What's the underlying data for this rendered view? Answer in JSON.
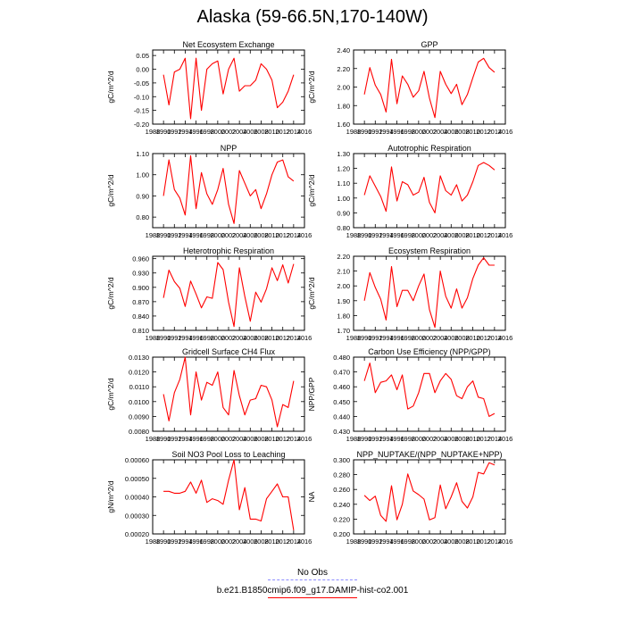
{
  "figure": {
    "title": "Alaska (59-66.5N,170-140W)",
    "legend": [
      {
        "label": "No Obs",
        "color": "#8c8cff",
        "dashed": true
      },
      {
        "label": "b.e21.B1850cmip6.f09_g17.DAMIP-hist-co2.001",
        "color": "#ff0000",
        "dashed": false
      }
    ]
  },
  "chart_data": [
    {
      "type": "line",
      "title": "Net Ecosystem Exchange",
      "ylabel": "gC/m^2/d",
      "xlabel": "",
      "xlim": [
        1988,
        2016
      ],
      "ylim": [
        -0.2,
        0.07
      ],
      "xticks": [
        "1988",
        "1990",
        "1992",
        "1994",
        "1996",
        "1998",
        "2000",
        "2002",
        "2004",
        "2006",
        "2008",
        "2010",
        "2012",
        "2014",
        "2016"
      ],
      "yticks": [
        "-0.20",
        "-0.15",
        "-0.10",
        "-0.05",
        "0.00",
        "0.05"
      ],
      "ytick_values": [
        -0.2,
        -0.15,
        -0.1,
        -0.05,
        0.0,
        0.05
      ],
      "series": [
        {
          "color": "#ff0000",
          "x": [
            1990,
            1991,
            1992,
            1993,
            1994,
            1995,
            1996,
            1997,
            1998,
            1999,
            2000,
            2001,
            2002,
            2003,
            2004,
            2005,
            2006,
            2007,
            2008,
            2009,
            2010,
            2011,
            2012,
            2013,
            2014
          ],
          "y": [
            -0.02,
            -0.13,
            -0.01,
            0.0,
            0.04,
            -0.18,
            0.04,
            -0.15,
            0.0,
            0.02,
            0.03,
            -0.09,
            0.0,
            0.04,
            -0.08,
            -0.06,
            -0.06,
            -0.04,
            0.02,
            0.0,
            -0.04,
            -0.14,
            -0.12,
            -0.08,
            -0.02
          ]
        }
      ]
    },
    {
      "type": "line",
      "title": "GPP",
      "ylabel": "gC/m^2/d",
      "xlabel": "",
      "xlim": [
        1988,
        2016
      ],
      "ylim": [
        1.6,
        2.4
      ],
      "xticks": [
        "1988",
        "1990",
        "1992",
        "1994",
        "1996",
        "1998",
        "2000",
        "2002",
        "2004",
        "2006",
        "2008",
        "2010",
        "2012",
        "2014",
        "2016"
      ],
      "yticks": [
        "1.60",
        "1.80",
        "2.00",
        "2.20",
        "2.40"
      ],
      "ytick_values": [
        1.6,
        1.8,
        2.0,
        2.2,
        2.4
      ],
      "series": [
        {
          "color": "#ff0000",
          "x": [
            1990,
            1991,
            1992,
            1993,
            1994,
            1995,
            1996,
            1997,
            1998,
            1999,
            2000,
            2001,
            2002,
            2003,
            2004,
            2005,
            2006,
            2007,
            2008,
            2009,
            2010,
            2011,
            2012,
            2013,
            2014
          ],
          "y": [
            1.92,
            2.21,
            2.02,
            1.92,
            1.73,
            2.3,
            1.82,
            2.12,
            2.03,
            1.89,
            1.96,
            2.17,
            1.88,
            1.67,
            2.17,
            2.03,
            1.93,
            2.03,
            1.81,
            1.92,
            2.1,
            2.27,
            2.31,
            2.21,
            2.16
          ]
        }
      ]
    },
    {
      "type": "line",
      "title": "NPP",
      "ylabel": "gC/m^2/d",
      "xlabel": "",
      "xlim": [
        1988,
        2016
      ],
      "ylim": [
        0.75,
        1.1
      ],
      "xticks": [
        "1988",
        "1990",
        "1992",
        "1994",
        "1996",
        "1998",
        "2000",
        "2002",
        "2004",
        "2006",
        "2008",
        "2010",
        "2012",
        "2014",
        "2016"
      ],
      "yticks": [
        "0.80",
        "0.90",
        "1.00",
        "1.10"
      ],
      "ytick_values": [
        0.8,
        0.9,
        1.0,
        1.1
      ],
      "series": [
        {
          "color": "#ff0000",
          "x": [
            1990,
            1991,
            1992,
            1993,
            1994,
            1995,
            1996,
            1997,
            1998,
            1999,
            2000,
            2001,
            2002,
            2003,
            2004,
            2005,
            2006,
            2007,
            2008,
            2009,
            2010,
            2011,
            2012,
            2013,
            2014
          ],
          "y": [
            0.9,
            1.07,
            0.93,
            0.89,
            0.81,
            1.09,
            0.84,
            1.01,
            0.91,
            0.86,
            0.93,
            1.03,
            0.86,
            0.77,
            1.02,
            0.96,
            0.9,
            0.93,
            0.84,
            0.91,
            1.0,
            1.06,
            1.07,
            0.99,
            0.97
          ]
        }
      ]
    },
    {
      "type": "line",
      "title": "Autotrophic Respiration",
      "ylabel": "gC/m^2/d",
      "xlabel": "",
      "xlim": [
        1988,
        2016
      ],
      "ylim": [
        0.8,
        1.3
      ],
      "xticks": [
        "1988",
        "1990",
        "1992",
        "1994",
        "1996",
        "1998",
        "2000",
        "2002",
        "2004",
        "2006",
        "2008",
        "2010",
        "2012",
        "2014",
        "2016"
      ],
      "yticks": [
        "0.80",
        "0.90",
        "1.00",
        "1.10",
        "1.20",
        "1.30"
      ],
      "ytick_values": [
        0.8,
        0.9,
        1.0,
        1.1,
        1.2,
        1.3
      ],
      "series": [
        {
          "color": "#ff0000",
          "x": [
            1990,
            1991,
            1992,
            1993,
            1994,
            1995,
            1996,
            1997,
            1998,
            1999,
            2000,
            2001,
            2002,
            2003,
            2004,
            2005,
            2006,
            2007,
            2008,
            2009,
            2010,
            2011,
            2012,
            2013,
            2014
          ],
          "y": [
            1.02,
            1.15,
            1.08,
            1.01,
            0.91,
            1.21,
            0.98,
            1.11,
            1.09,
            1.02,
            1.04,
            1.14,
            0.97,
            0.9,
            1.15,
            1.05,
            1.02,
            1.09,
            0.98,
            1.02,
            1.11,
            1.22,
            1.24,
            1.22,
            1.19
          ]
        }
      ]
    },
    {
      "type": "line",
      "title": "Heterotrophic Respiration",
      "ylabel": "gC/m^2/d",
      "xlabel": "",
      "xlim": [
        1988,
        2016
      ],
      "ylim": [
        0.81,
        0.965
      ],
      "xticks": [
        "1988",
        "1990",
        "1992",
        "1994",
        "1996",
        "1998",
        "2000",
        "2002",
        "2004",
        "2006",
        "2008",
        "2010",
        "2012",
        "2014",
        "2016"
      ],
      "yticks": [
        "0.810",
        "0.840",
        "0.870",
        "0.900",
        "0.930",
        "0.960"
      ],
      "ytick_values": [
        0.81,
        0.84,
        0.87,
        0.9,
        0.93,
        0.96
      ],
      "series": [
        {
          "color": "#ff0000",
          "x": [
            1990,
            1991,
            1992,
            1993,
            1994,
            1995,
            1996,
            1997,
            1998,
            1999,
            2000,
            2001,
            2002,
            2003,
            2004,
            2005,
            2006,
            2007,
            2008,
            2009,
            2010,
            2011,
            2012,
            2013,
            2014
          ],
          "y": [
            0.878,
            0.936,
            0.912,
            0.898,
            0.86,
            0.913,
            0.886,
            0.857,
            0.88,
            0.877,
            0.952,
            0.937,
            0.869,
            0.818,
            0.941,
            0.881,
            0.829,
            0.89,
            0.869,
            0.897,
            0.941,
            0.914,
            0.947,
            0.909,
            0.949
          ]
        }
      ]
    },
    {
      "type": "line",
      "title": "Ecosystem Respiration",
      "ylabel": "gC/m^2/d",
      "xlabel": "",
      "xlim": [
        1988,
        2016
      ],
      "ylim": [
        1.7,
        2.2
      ],
      "xticks": [
        "1988",
        "1990",
        "1992",
        "1994",
        "1996",
        "1998",
        "2000",
        "2002",
        "2004",
        "2006",
        "2008",
        "2010",
        "2012",
        "2014",
        "2016"
      ],
      "yticks": [
        "1.70",
        "1.80",
        "1.90",
        "2.00",
        "2.10",
        "2.20"
      ],
      "ytick_values": [
        1.7,
        1.8,
        1.9,
        2.0,
        2.1,
        2.2
      ],
      "series": [
        {
          "color": "#ff0000",
          "x": [
            1990,
            1991,
            1992,
            1993,
            1994,
            1995,
            1996,
            1997,
            1998,
            1999,
            2000,
            2001,
            2002,
            2003,
            2004,
            2005,
            2006,
            2007,
            2008,
            2009,
            2010,
            2011,
            2012,
            2013,
            2014
          ],
          "y": [
            1.9,
            2.09,
            1.99,
            1.91,
            1.77,
            2.13,
            1.86,
            1.97,
            1.97,
            1.9,
            2.0,
            2.08,
            1.84,
            1.72,
            2.1,
            1.93,
            1.85,
            1.98,
            1.85,
            1.92,
            2.05,
            2.14,
            2.19,
            2.14,
            2.14
          ]
        }
      ]
    },
    {
      "type": "line",
      "title": "Gridcell Surface CH4 Flux",
      "ylabel": "gC/m^2/d",
      "xlabel": "",
      "xlim": [
        1988,
        2016
      ],
      "ylim": [
        0.008,
        0.013
      ],
      "xticks": [
        "1988",
        "1990",
        "1992",
        "1994",
        "1996",
        "1998",
        "2000",
        "2002",
        "2004",
        "2006",
        "2008",
        "2010",
        "2012",
        "2014",
        "2016"
      ],
      "yticks": [
        "0.0080",
        "0.0090",
        "0.0100",
        "0.0110",
        "0.0120",
        "0.0130"
      ],
      "ytick_values": [
        0.008,
        0.009,
        0.01,
        0.011,
        0.012,
        0.013
      ],
      "series": [
        {
          "color": "#ff0000",
          "x": [
            1990,
            1991,
            1992,
            1993,
            1994,
            1995,
            1996,
            1997,
            1998,
            1999,
            2000,
            2001,
            2002,
            2003,
            2004,
            2005,
            2006,
            2007,
            2008,
            2009,
            2010,
            2011,
            2012,
            2013,
            2014
          ],
          "y": [
            0.0105,
            0.0087,
            0.0106,
            0.0115,
            0.013,
            0.0091,
            0.012,
            0.0101,
            0.0113,
            0.0111,
            0.012,
            0.0096,
            0.0091,
            0.0121,
            0.0104,
            0.0091,
            0.0101,
            0.0102,
            0.0111,
            0.011,
            0.0101,
            0.0083,
            0.0098,
            0.0096,
            0.0114
          ]
        }
      ]
    },
    {
      "type": "line",
      "title": "Carbon Use Efficiency (NPP/GPP)",
      "ylabel": "NPP/GPP",
      "xlabel": "",
      "xlim": [
        1988,
        2016
      ],
      "ylim": [
        0.43,
        0.48
      ],
      "xticks": [
        "1988",
        "1990",
        "1992",
        "1994",
        "1996",
        "1998",
        "2000",
        "2002",
        "2004",
        "2006",
        "2008",
        "2010",
        "2012",
        "2014",
        "2016"
      ],
      "yticks": [
        "0.430",
        "0.440",
        "0.450",
        "0.460",
        "0.470",
        "0.480"
      ],
      "ytick_values": [
        0.43,
        0.44,
        0.45,
        0.46,
        0.47,
        0.48
      ],
      "series": [
        {
          "color": "#ff0000",
          "x": [
            1990,
            1991,
            1992,
            1993,
            1994,
            1995,
            1996,
            1997,
            1998,
            1999,
            2000,
            2001,
            2002,
            2003,
            2004,
            2005,
            2006,
            2007,
            2008,
            2009,
            2010,
            2011,
            2012,
            2013,
            2014
          ],
          "y": [
            0.464,
            0.476,
            0.456,
            0.463,
            0.464,
            0.468,
            0.458,
            0.468,
            0.445,
            0.447,
            0.456,
            0.469,
            0.469,
            0.456,
            0.464,
            0.469,
            0.465,
            0.454,
            0.452,
            0.46,
            0.464,
            0.453,
            0.452,
            0.44,
            0.442
          ]
        }
      ]
    },
    {
      "type": "line",
      "title": "Soil NO3 Pool Loss to Leaching",
      "ylabel": "gN/m^2/d",
      "xlabel": "",
      "xlim": [
        1988,
        2016
      ],
      "ylim": [
        0.0002,
        0.0006
      ],
      "xticks": [
        "1988",
        "1990",
        "1992",
        "1994",
        "1996",
        "1998",
        "2000",
        "2002",
        "2004",
        "2006",
        "2008",
        "2010",
        "2012",
        "2014",
        "2016"
      ],
      "yticks": [
        "0.00020",
        "0.00030",
        "0.00040",
        "0.00050",
        "0.00060"
      ],
      "ytick_values": [
        0.0002,
        0.0003,
        0.0004,
        0.0005,
        0.0006
      ],
      "series": [
        {
          "color": "#ff0000",
          "x": [
            1990,
            1991,
            1992,
            1993,
            1994,
            1995,
            1996,
            1997,
            1998,
            1999,
            2000,
            2001,
            2002,
            2003,
            2004,
            2005,
            2006,
            2007,
            2008,
            2009,
            2010,
            2011,
            2012,
            2013,
            2014
          ],
          "y": [
            0.00043,
            0.00043,
            0.00042,
            0.00042,
            0.00043,
            0.00048,
            0.00042,
            0.00049,
            0.00037,
            0.00039,
            0.00038,
            0.00036,
            0.00049,
            0.0006,
            0.00033,
            0.00045,
            0.00028,
            0.00028,
            0.00027,
            0.00039,
            0.00043,
            0.00047,
            0.0004,
            0.0004,
            0.00022
          ]
        }
      ]
    },
    {
      "type": "line",
      "title": "NPP_NUPTAKE/(NPP_NUPTAKE+NPP)",
      "ylabel": "NA",
      "xlabel": "",
      "xlim": [
        1988,
        2016
      ],
      "ylim": [
        0.2,
        0.3
      ],
      "xticks": [
        "1988",
        "1990",
        "1992",
        "1994",
        "1996",
        "1998",
        "2000",
        "2002",
        "2004",
        "2006",
        "2008",
        "2010",
        "2012",
        "2014",
        "2016"
      ],
      "yticks": [
        "0.200",
        "0.220",
        "0.240",
        "0.260",
        "0.280",
        "0.300"
      ],
      "ytick_values": [
        0.2,
        0.22,
        0.24,
        0.26,
        0.28,
        0.3
      ],
      "series": [
        {
          "color": "#ff0000",
          "x": [
            1990,
            1991,
            1992,
            1993,
            1994,
            1995,
            1996,
            1997,
            1998,
            1999,
            2000,
            2001,
            2002,
            2003,
            2004,
            2005,
            2006,
            2007,
            2008,
            2009,
            2010,
            2011,
            2012,
            2013,
            2014
          ],
          "y": [
            0.252,
            0.245,
            0.251,
            0.225,
            0.217,
            0.265,
            0.219,
            0.24,
            0.281,
            0.258,
            0.253,
            0.247,
            0.219,
            0.222,
            0.266,
            0.234,
            0.25,
            0.269,
            0.244,
            0.235,
            0.25,
            0.283,
            0.281,
            0.296,
            0.293
          ]
        }
      ]
    }
  ]
}
